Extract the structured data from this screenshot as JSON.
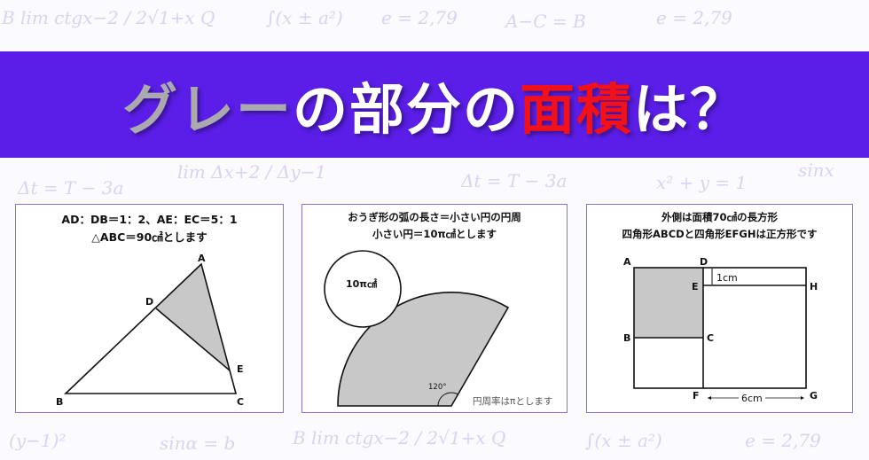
{
  "background_formulas": [
    "B lim ctgx−2 / 2√1+x Q",
    "∫(x ± a²)",
    "e = 2,79",
    "A−C = B",
    "lim Δx+2 / Δy−1",
    "Δt = T − 3a",
    "sinx",
    "sinα = b",
    "(y−1)²",
    "x² + y = 1"
  ],
  "banner": {
    "title_gray": "グレー",
    "title_white1": "の部分の",
    "title_red": "面積",
    "title_white2": "は？",
    "bg_color": "#5a1ee8"
  },
  "panel1": {
    "line1": "AD：DB＝1：2、AE：EC＝5：1",
    "line2": "△ABC＝90㎠とします",
    "labels": {
      "A": "A",
      "B": "B",
      "C": "C",
      "D": "D",
      "E": "E"
    }
  },
  "panel2": {
    "line1": "おうぎ形の弧の長さ＝小さい円の円周",
    "line2": "小さい円＝10π㎠とします",
    "circle_label": "10π㎠",
    "angle_label": "120°",
    "note": "円周率はπとします"
  },
  "panel3": {
    "line1": "外側は面積70㎠の長方形",
    "line2": "四角形ABCDと四角形EFGHは正方形です",
    "labels": {
      "A": "A",
      "B": "B",
      "C": "C",
      "D": "D",
      "E": "E",
      "F": "F",
      "G": "G",
      "H": "H"
    },
    "dim_small": "1cm",
    "dim_bottom": "6cm"
  },
  "colors": {
    "shade": "#c8c8c8",
    "border": "#8c6fd6",
    "red": "#f2101a"
  }
}
